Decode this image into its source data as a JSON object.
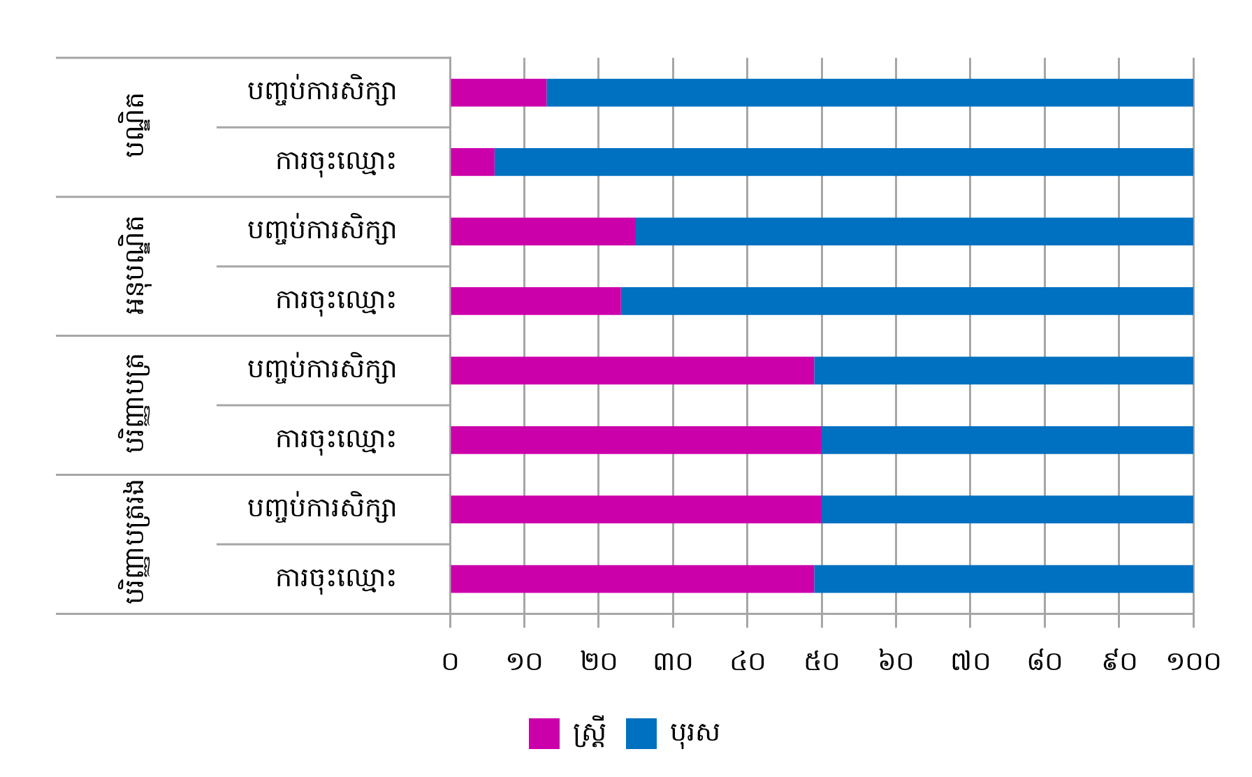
{
  "chart_data": {
    "type": "bar",
    "orientation": "horizontal",
    "stacked": true,
    "categories": [
      "បញ្ចប់ការសិក្សា",
      "ការចុះឈ្មោះ",
      "បញ្ចប់ការសិក្សា",
      "ការចុះឈ្មោះ",
      "បញ្ចប់ការសិក្សា",
      "ការចុះឈ្មោះ",
      "បញ្ចប់ការសិក្សា",
      "ការចុះឈ្មោះ"
    ],
    "series": [
      {
        "name": "ស្ត្រី",
        "color": "#cc00aa",
        "values": [
          13,
          6,
          25,
          23,
          49,
          50,
          50,
          49
        ]
      },
      {
        "name": "បុរស",
        "color": "#0070c0",
        "values": [
          87,
          94,
          75,
          77,
          51,
          50,
          50,
          51
        ]
      }
    ],
    "annotations": [
      "បណ្ឌិត",
      "អនុបណ្ឌិត",
      "បរិញ្ញាបត្រ",
      "បរិញ្ញាបត្ររង"
    ],
    "xlim": [
      0,
      100
    ],
    "xticks": [
      {
        "value": 0,
        "label": "០"
      },
      {
        "value": 10,
        "label": "១០"
      },
      {
        "value": 20,
        "label": "២០"
      },
      {
        "value": 30,
        "label": "៣០"
      },
      {
        "value": 40,
        "label": "៤០"
      },
      {
        "value": 50,
        "label": "៥០"
      },
      {
        "value": 60,
        "label": "៦០"
      },
      {
        "value": 70,
        "label": "៧០"
      },
      {
        "value": 80,
        "label": "៨០"
      },
      {
        "value": 90,
        "label": "៩០"
      },
      {
        "value": 100,
        "label": "១០០"
      }
    ],
    "grid": "x",
    "legend": "bottom"
  }
}
